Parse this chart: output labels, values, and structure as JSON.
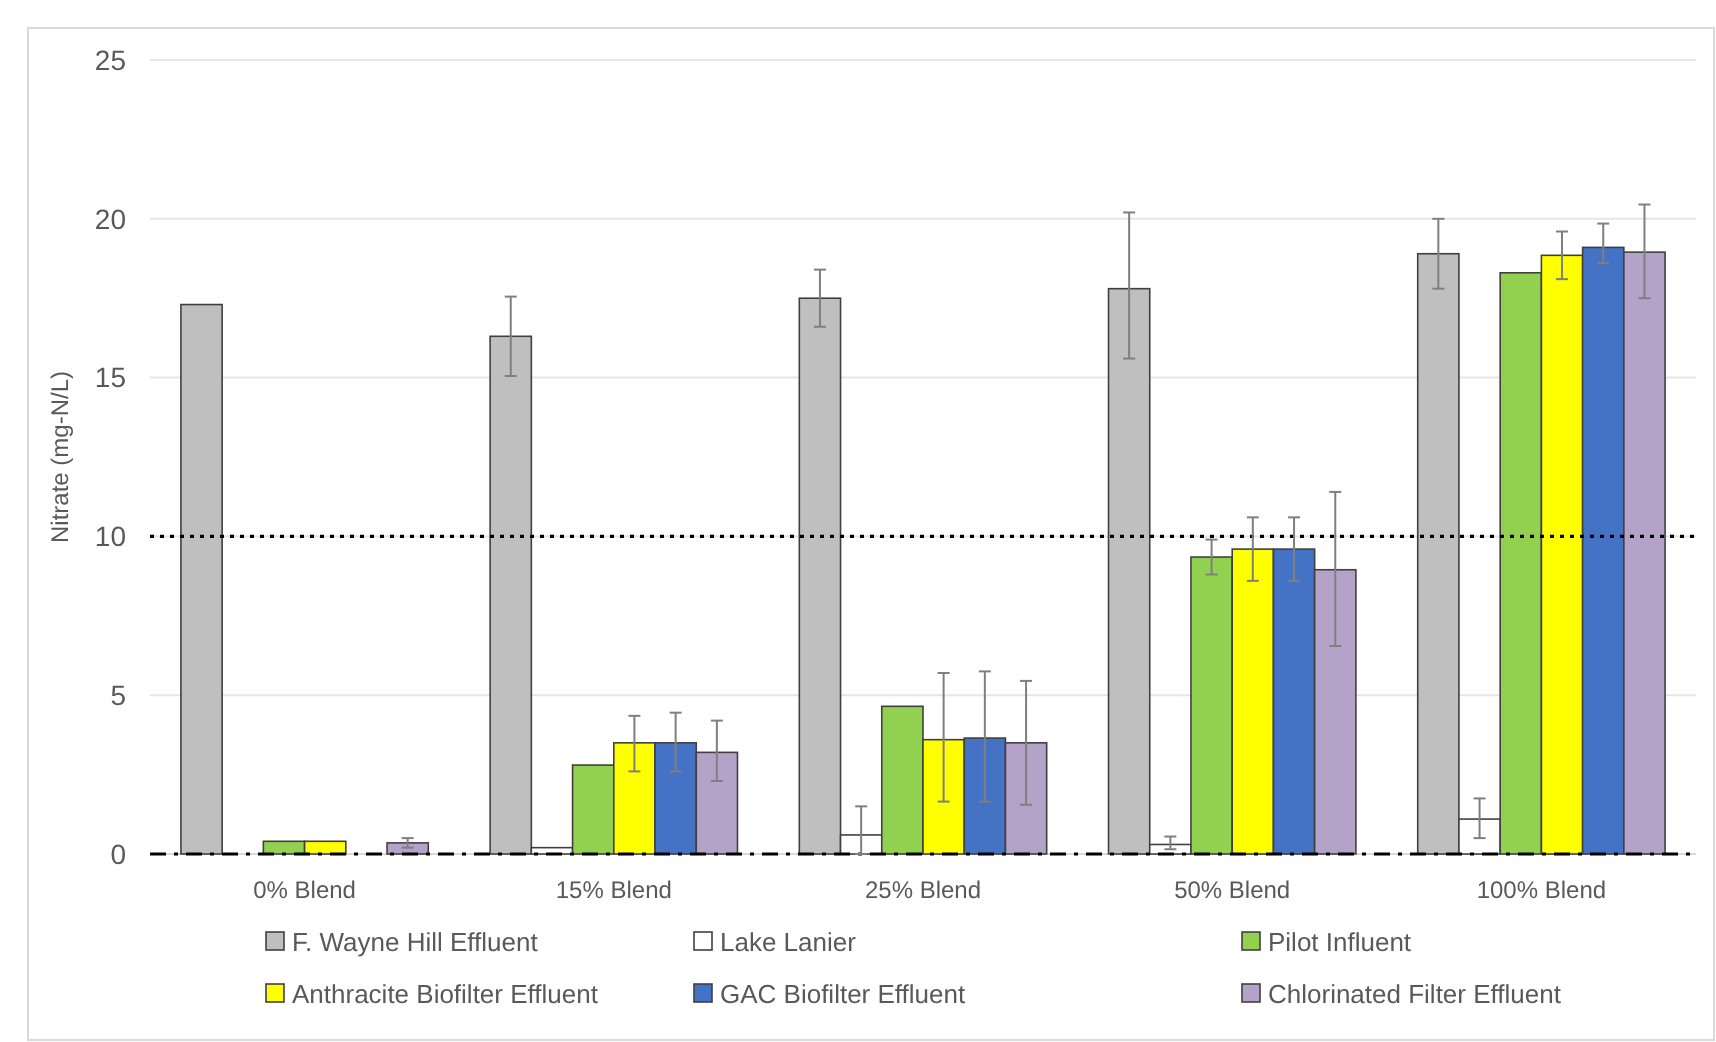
{
  "chart_data": {
    "type": "bar",
    "ylabel": "Nitrate (mg-N/L)",
    "categories": [
      "0% Blend",
      "15% Blend",
      "25% Blend",
      "50% Blend",
      "100% Blend"
    ],
    "series": [
      {
        "name": "F. Wayne Hill Effluent",
        "color": "#bfbfbf",
        "values": [
          17.3,
          16.3,
          17.5,
          17.8,
          18.9
        ],
        "errors": [
          null,
          [
            15.05,
            17.55
          ],
          [
            16.6,
            18.4
          ],
          [
            15.6,
            20.2
          ],
          [
            17.8,
            20.0
          ]
        ]
      },
      {
        "name": "Lake Lanier",
        "color": "#ffffff",
        "values": [
          0,
          0.2,
          0.6,
          0.3,
          1.1
        ],
        "errors": [
          null,
          null,
          [
            0,
            1.5
          ],
          [
            0.15,
            0.55
          ],
          [
            0.5,
            1.75
          ]
        ]
      },
      {
        "name": "Pilot Influent",
        "color": "#92d050",
        "values": [
          0.4,
          2.8,
          4.65,
          9.35,
          18.3
        ],
        "errors": [
          null,
          null,
          null,
          [
            8.8,
            9.9
          ],
          null
        ]
      },
      {
        "name": "Anthracite Biofilter Effluent",
        "color": "#ffff00",
        "values": [
          0.4,
          3.5,
          3.6,
          9.6,
          18.85
        ],
        "errors": [
          null,
          [
            2.6,
            4.35
          ],
          [
            1.65,
            5.7
          ],
          [
            8.6,
            10.6
          ],
          [
            18.1,
            19.6
          ]
        ]
      },
      {
        "name": "GAC Biofilter Effluent",
        "color": "#4472c4",
        "values": [
          0,
          3.5,
          3.65,
          9.6,
          19.1
        ],
        "errors": [
          null,
          [
            2.6,
            4.45
          ],
          [
            1.65,
            5.75
          ],
          [
            8.6,
            10.6
          ],
          [
            18.6,
            19.85
          ]
        ]
      },
      {
        "name": "Chlorinated Filter Effluent",
        "color": "#b4a2c8",
        "values": [
          0.35,
          3.2,
          3.5,
          8.95,
          18.95
        ],
        "errors": [
          [
            0.2,
            0.5
          ],
          [
            2.3,
            4.2
          ],
          [
            1.55,
            5.45
          ],
          [
            6.55,
            11.4
          ],
          [
            17.5,
            20.45
          ]
        ]
      }
    ],
    "ylim": [
      0,
      25
    ],
    "yticks": [
      0,
      5,
      10,
      15,
      20,
      25
    ],
    "grid": "y",
    "legend": "bottom",
    "ref_lines": [
      {
        "axis": "y",
        "value": 10,
        "line_style": "dotted",
        "color": "#000000"
      },
      {
        "axis": "y",
        "value": 0,
        "line_style": "dashed",
        "color": "#000000"
      }
    ]
  }
}
